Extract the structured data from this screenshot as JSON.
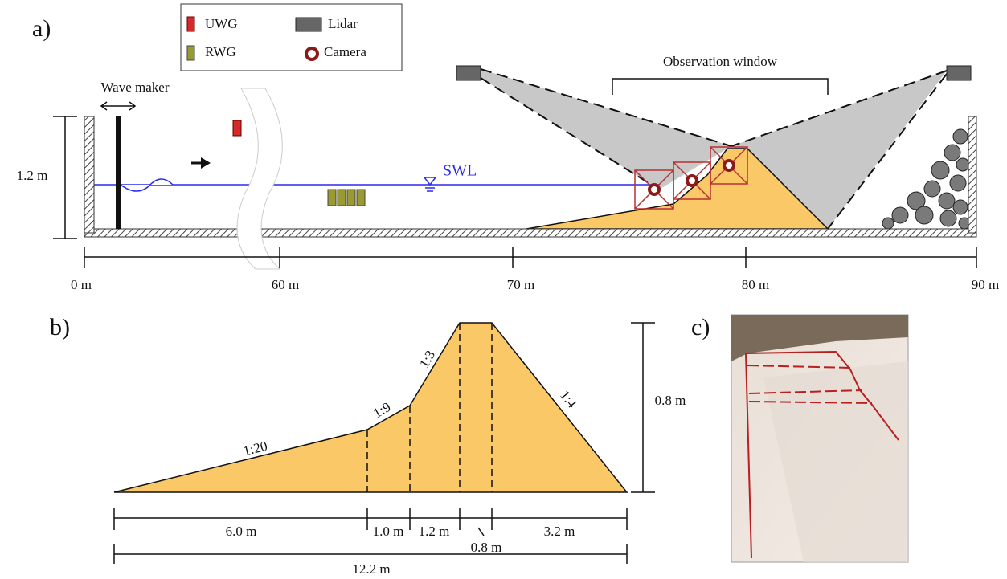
{
  "panel_a": {
    "label": "a)",
    "legend": [
      {
        "label": "UWG"
      },
      {
        "label": "Lidar"
      },
      {
        "label": "RWG"
      },
      {
        "label": "Camera"
      }
    ],
    "observation_window": "Observation window",
    "wave_maker": "Wave maker",
    "height_label": "1.2 m",
    "swl": "SWL",
    "distance_ticks": [
      "0 m",
      "60 m",
      "70 m",
      "80 m",
      "90 m"
    ]
  },
  "panel_b": {
    "label": "b)",
    "slopes": [
      "1:20",
      "1:9",
      "1:3",
      "1:4"
    ],
    "height_label": "0.8 m",
    "segment_lengths": [
      "6.0 m",
      "1.0 m",
      "1.2 m",
      "0.8 m",
      "3.2 m"
    ],
    "total_length": "12.2 m"
  },
  "panel_c": {
    "label": "c)"
  }
}
